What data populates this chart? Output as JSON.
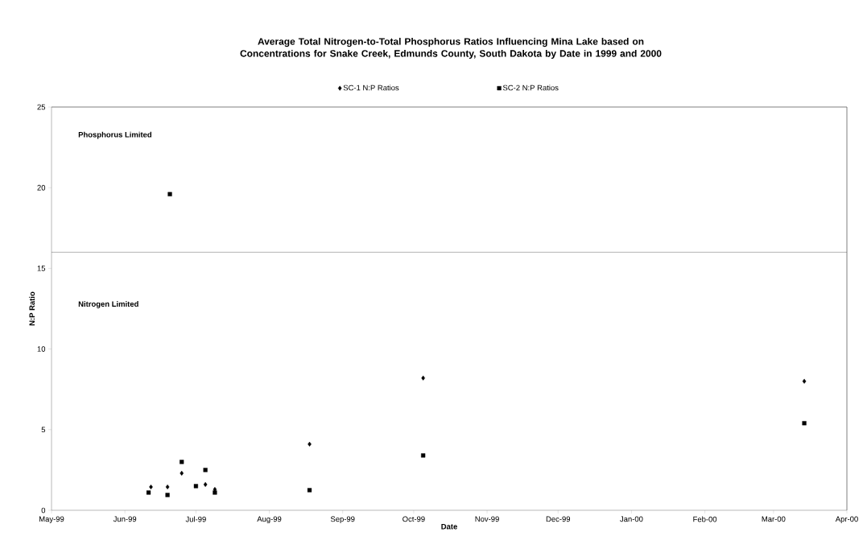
{
  "chart_data": {
    "type": "scatter",
    "title": "Average Total Nitrogen-to-Total Phosphorus Ratios Influencing Mina Lake based on Concentrations for Snake Creek, Edmunds County, South Dakota by Date in 1999 and 2000",
    "xlabel": "Date",
    "ylabel": "N:P Ratio",
    "series": [
      {
        "name": "SC-1 N:P Ratios",
        "color": "#000000",
        "marker": "diamond",
        "x": [
          "1999-06-12",
          "1999-06-19",
          "1999-06-25",
          "1999-07-05",
          "1999-07-09",
          "1999-08-18",
          "1999-10-05",
          "2000-03-14"
        ],
        "values": [
          1.45,
          1.45,
          2.3,
          1.6,
          1.3,
          4.1,
          8.2,
          8.0
        ]
      },
      {
        "name": "SC-2 N:P Ratios",
        "color": "#000000",
        "marker": "square",
        "x": [
          "1999-06-11",
          "1999-06-19",
          "1999-06-20",
          "1999-06-25",
          "1999-07-01",
          "1999-07-05",
          "1999-07-09",
          "1999-08-18",
          "1999-10-05",
          "2000-03-14"
        ],
        "values": [
          1.1,
          0.95,
          19.6,
          3.0,
          1.5,
          2.5,
          1.1,
          1.25,
          3.4,
          5.4
        ]
      }
    ],
    "annotations": [
      "Phosphorus Limited",
      "Nitrogen Limited"
    ],
    "ref_lines": [
      {
        "axis": "y",
        "value": 16,
        "color": "#404040"
      }
    ],
    "xlim": [
      "1999-05-01",
      "2000-04-01"
    ],
    "xticks": [
      {
        "value": "1999-05-01",
        "label": "May-99"
      },
      {
        "value": "1999-06-01",
        "label": "Jun-99"
      },
      {
        "value": "1999-07-01",
        "label": "Jul-99"
      },
      {
        "value": "1999-08-01",
        "label": "Aug-99"
      },
      {
        "value": "1999-09-01",
        "label": "Sep-99"
      },
      {
        "value": "1999-10-01",
        "label": "Oct-99"
      },
      {
        "value": "1999-11-01",
        "label": "Nov-99"
      },
      {
        "value": "1999-12-01",
        "label": "Dec-99"
      },
      {
        "value": "2000-01-01",
        "label": "Jan-00"
      },
      {
        "value": "2000-02-01",
        "label": "Feb-00"
      },
      {
        "value": "2000-03-01",
        "label": "Mar-00"
      },
      {
        "value": "2000-04-01",
        "label": "Apr-00"
      }
    ],
    "ylim": [
      0,
      25
    ],
    "yticks": [
      0,
      5,
      10,
      15,
      20,
      25
    ],
    "legend": "top",
    "grid": false
  }
}
